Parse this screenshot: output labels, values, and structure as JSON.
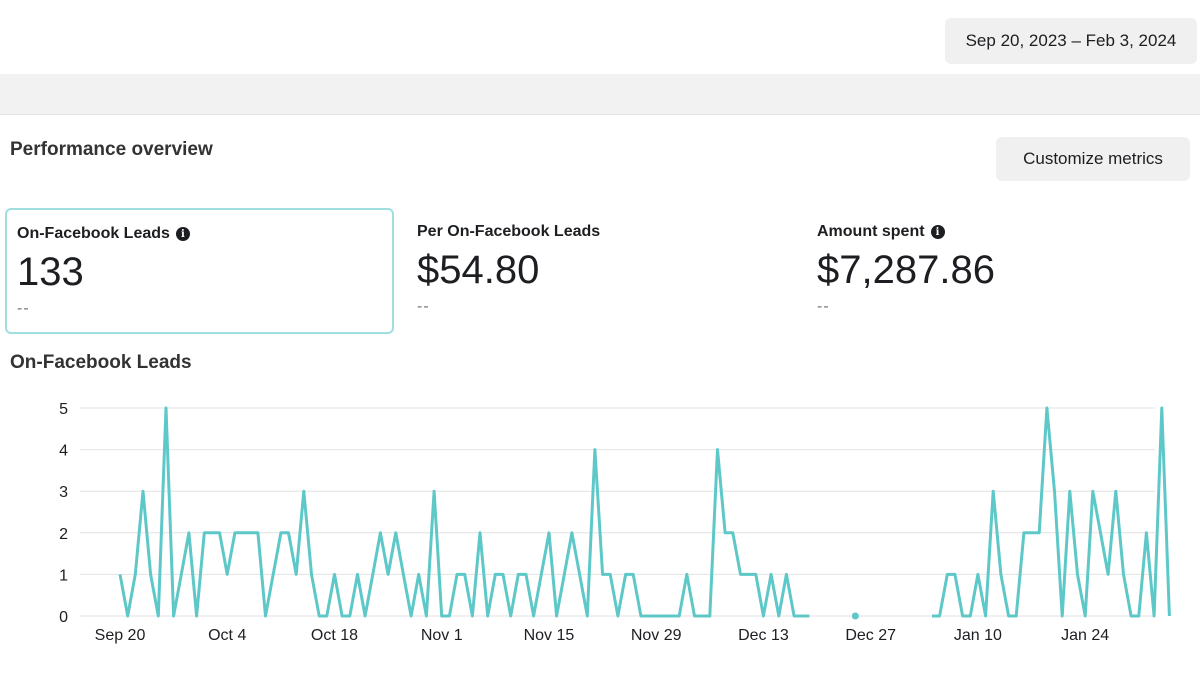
{
  "header": {
    "date_range": "Sep 20, 2023 – Feb 3, 2024"
  },
  "overview": {
    "title": "Performance overview",
    "customize_label": "Customize metrics"
  },
  "metrics": [
    {
      "label": "On-Facebook Leads",
      "value": "133",
      "delta": "--",
      "info": true,
      "selected": true
    },
    {
      "label": "Per On-Facebook Leads",
      "value": "$54.80",
      "delta": "--",
      "info": false,
      "selected": false
    },
    {
      "label": "Amount spent",
      "value": "$7,287.86",
      "delta": "--",
      "info": true,
      "selected": false
    }
  ],
  "colors": {
    "line": "#5ec8c8",
    "grid": "#e2e2e2",
    "selected_border": "#9fdfe0"
  },
  "chart_data": {
    "type": "line",
    "title": "On-Facebook Leads",
    "xlabel": "",
    "ylabel": "",
    "ylim": [
      0,
      5
    ],
    "yticks": [
      0,
      1,
      2,
      3,
      4,
      5
    ],
    "x_start_date": "Sep 20",
    "xtick_labels": [
      "Sep 20",
      "Oct 4",
      "Oct 18",
      "Nov 1",
      "Nov 15",
      "Nov 29",
      "Dec 13",
      "Dec 27",
      "Jan 10",
      "Jan 24"
    ],
    "xtick_day_index": [
      0,
      14,
      28,
      42,
      56,
      70,
      84,
      98,
      112,
      126
    ],
    "legend": "none",
    "grid": true,
    "series": [
      {
        "name": "On-Facebook Leads",
        "values": [
          1,
          0,
          1,
          3,
          1,
          0,
          5,
          0,
          1,
          2,
          0,
          2,
          2,
          2,
          1,
          2,
          2,
          2,
          2,
          0,
          1,
          2,
          2,
          1,
          3,
          1,
          0,
          0,
          1,
          0,
          0,
          1,
          0,
          1,
          2,
          1,
          2,
          1,
          0,
          1,
          0,
          3,
          0,
          0,
          1,
          1,
          0,
          2,
          0,
          1,
          1,
          0,
          1,
          1,
          0,
          1,
          2,
          0,
          1,
          2,
          1,
          0,
          4,
          1,
          1,
          0,
          1,
          1,
          0,
          0,
          0,
          0,
          0,
          0,
          1,
          0,
          0,
          0,
          4,
          2,
          2,
          1,
          1,
          1,
          0,
          1,
          0,
          1,
          0,
          0,
          0,
          null,
          null,
          null,
          null,
          null,
          0,
          null,
          null,
          null,
          null,
          null,
          null,
          null,
          null,
          null,
          0,
          0,
          1,
          1,
          0,
          0,
          1,
          0,
          3,
          1,
          0,
          0,
          2,
          2,
          2,
          5,
          3,
          0,
          3,
          1,
          0,
          3,
          2,
          1,
          3,
          1,
          0,
          0,
          2,
          0,
          5,
          0
        ]
      }
    ]
  }
}
